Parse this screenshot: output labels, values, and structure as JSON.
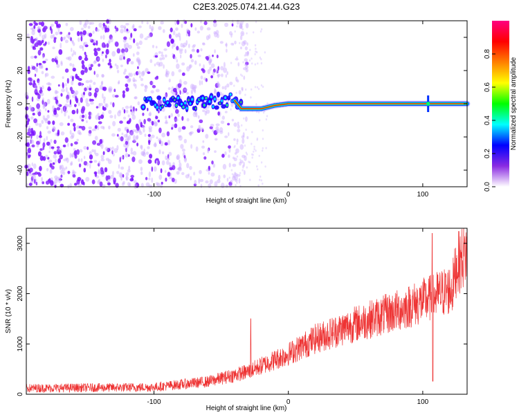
{
  "title": "C2E3.2025.074.21.44.G23",
  "chart_data": [
    {
      "type": "heatmap",
      "name": "spectrogram",
      "xlabel": "Height of straight line (km)",
      "ylabel": "Frequency (Hz)",
      "xlim": [
        -195,
        133
      ],
      "ylim": [
        -50,
        50
      ],
      "xticks": [
        -100,
        0,
        100
      ],
      "xtick_labels": [
        "-100",
        "0",
        "100"
      ],
      "yticks": [
        -40,
        -20,
        0,
        20,
        40
      ],
      "ytick_labels": [
        "-40",
        "-20",
        "0",
        "20",
        "40"
      ],
      "colorbar": {
        "label": "Normalized spectral amplitude",
        "range": [
          0,
          1
        ],
        "ticks": [
          0,
          0.2,
          0.4,
          0.6,
          0.8
        ],
        "tick_labels": [
          "0.0",
          "0.2",
          "0.4",
          "0.6",
          "0.8"
        ],
        "colors": [
          "#ffffff",
          "#8a2be2",
          "#0000ff",
          "#00ffff",
          "#00ff00",
          "#ffff00",
          "#ff8000",
          "#ff0000",
          "#ff0080"
        ]
      },
      "ridge": {
        "description_points": [
          {
            "x": -105,
            "y": 0
          },
          {
            "x": -40,
            "y": 2
          },
          {
            "x": -35,
            "y": -3
          },
          {
            "x": -20,
            "y": -3
          },
          {
            "x": -10,
            "y": -1
          },
          {
            "x": 0,
            "y": 0
          },
          {
            "x": 15,
            "y": 0
          },
          {
            "x": 133,
            "y": 0
          }
        ],
        "spike_x": 104
      },
      "noise_region_x": [
        -195,
        -35
      ]
    },
    {
      "type": "line",
      "name": "snr",
      "xlabel": "Height of straight line (km)",
      "ylabel": "SNR (10 * v/v)",
      "xlim": [
        -195,
        133
      ],
      "ylim": [
        0,
        3300
      ],
      "xticks": [
        -100,
        0,
        100
      ],
      "xtick_labels": [
        "-100",
        "0",
        "100"
      ],
      "yticks": [
        0,
        1000,
        2000,
        3000
      ],
      "ytick_labels": [
        "0",
        "1000",
        "2000",
        "3000"
      ],
      "color": "#ee3333",
      "trend": [
        {
          "x": -195,
          "y": 120
        },
        {
          "x": -100,
          "y": 140
        },
        {
          "x": -60,
          "y": 250
        },
        {
          "x": -30,
          "y": 450
        },
        {
          "x": 0,
          "y": 800
        },
        {
          "x": 20,
          "y": 1100
        },
        {
          "x": 50,
          "y": 1400
        },
        {
          "x": 80,
          "y": 1650
        },
        {
          "x": 105,
          "y": 1900
        },
        {
          "x": 122,
          "y": 2100
        },
        {
          "x": 125,
          "y": 2550
        },
        {
          "x": 133,
          "y": 2850
        }
      ],
      "spikes": [
        {
          "x": -28,
          "y": 1500
        },
        {
          "x": 107,
          "y": 3200
        },
        {
          "x": 107.5,
          "y": 260
        }
      ]
    }
  ]
}
